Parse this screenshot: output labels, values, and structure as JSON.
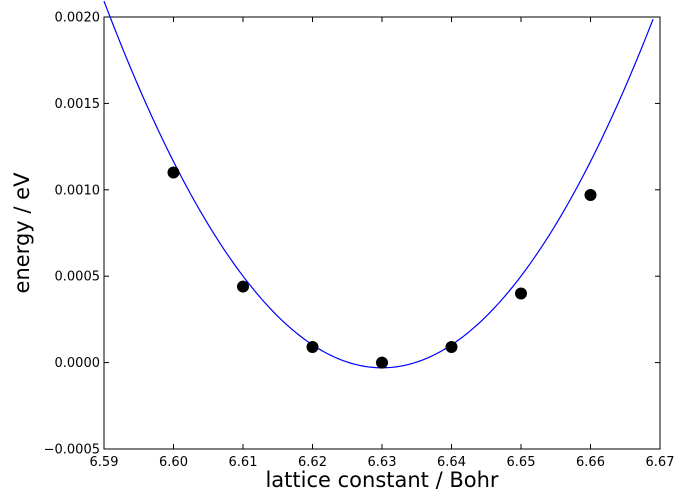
{
  "chart_data": {
    "type": "scatter",
    "xlabel": "lattice constant / Bohr",
    "ylabel": "energy / eV",
    "xlim": [
      6.59,
      6.67
    ],
    "ylim": [
      -0.0005,
      0.002
    ],
    "x_ticks": [
      "6.59",
      "6.60",
      "6.61",
      "6.62",
      "6.63",
      "6.64",
      "6.65",
      "6.66",
      "6.67"
    ],
    "y_ticks": [
      "−0.0005",
      "0.0000",
      "0.0005",
      "0.0010",
      "0.0015",
      "0.0020"
    ],
    "grid": false,
    "series": [
      {
        "kind": "points",
        "color": "#000000",
        "points": [
          {
            "x": 6.6,
            "y": 0.0011
          },
          {
            "x": 6.61,
            "y": 0.00044
          },
          {
            "x": 6.62,
            "y": 9e-05
          },
          {
            "x": 6.63,
            "y": 0.0
          },
          {
            "x": 6.64,
            "y": 9e-05
          },
          {
            "x": 6.65,
            "y": 0.0004
          },
          {
            "x": 6.66,
            "y": 0.00097
          }
        ]
      },
      {
        "kind": "fit-curve",
        "color": "#0000ff",
        "x_range": [
          6.59,
          6.669
        ],
        "quadratic": {
          "a": 1.3262,
          "x0": 6.63,
          "c": -3e-05
        }
      }
    ]
  }
}
